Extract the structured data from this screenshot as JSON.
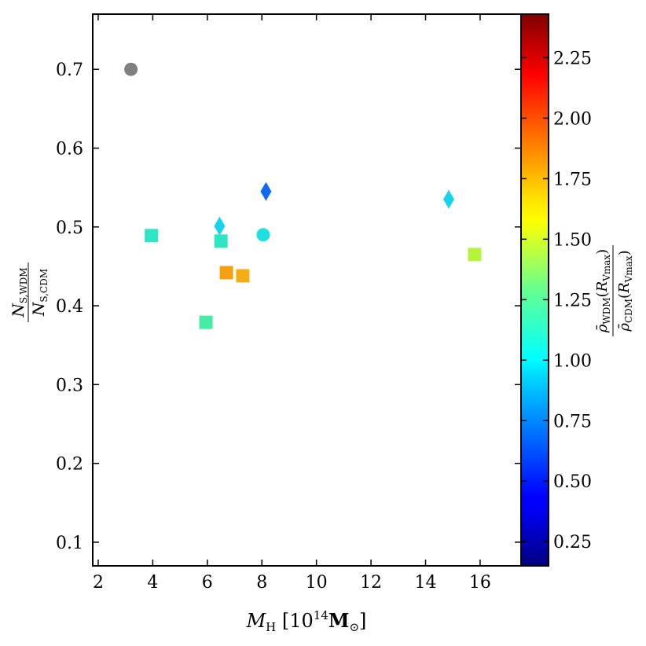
{
  "chart_data": {
    "type": "scatter",
    "title": "",
    "xlabel": "M_H [10^14 M_sun]",
    "ylabel": "N_S,WDM / N_S,CDM",
    "x_ticks": [
      "2",
      "4",
      "6",
      "8",
      "10",
      "12",
      "14",
      "16"
    ],
    "y_ticks": [
      "0.1",
      "0.2",
      "0.3",
      "0.4",
      "0.5",
      "0.6",
      "0.7"
    ],
    "xlim": [
      1.8,
      17.5
    ],
    "ylim": [
      0.07,
      0.77
    ],
    "grid": false,
    "colorbar": {
      "label": "rho_WDM(R_Vmax) / rho_CDM(R_Vmax)",
      "ticks": [
        "0.25",
        "0.50",
        "0.75",
        "1.00",
        "1.25",
        "1.50",
        "1.75",
        "2.00",
        "2.25"
      ],
      "range": [
        0.15,
        2.43
      ],
      "colormap": "jet"
    },
    "points": [
      {
        "x": 3.2,
        "y": 0.7,
        "marker": "circle",
        "color": "#808080"
      },
      {
        "x": 3.95,
        "y": 0.489,
        "marker": "square",
        "color": "#2fe6c4"
      },
      {
        "x": 6.45,
        "y": 0.501,
        "marker": "diamond",
        "color": "#17d4ea"
      },
      {
        "x": 6.5,
        "y": 0.482,
        "marker": "square",
        "color": "#2fe6c4"
      },
      {
        "x": 8.15,
        "y": 0.545,
        "marker": "diamond",
        "color": "#0f6af0"
      },
      {
        "x": 8.05,
        "y": 0.49,
        "marker": "circle",
        "color": "#1ee0de"
      },
      {
        "x": 6.7,
        "y": 0.442,
        "marker": "square",
        "color": "#f5a011"
      },
      {
        "x": 7.3,
        "y": 0.438,
        "marker": "square",
        "color": "#f5ad14"
      },
      {
        "x": 5.95,
        "y": 0.379,
        "marker": "square",
        "color": "#44eca4"
      },
      {
        "x": 14.85,
        "y": 0.535,
        "marker": "diamond",
        "color": "#17d4ea"
      },
      {
        "x": 15.8,
        "y": 0.465,
        "marker": "square",
        "color": "#b4f53c"
      }
    ]
  }
}
